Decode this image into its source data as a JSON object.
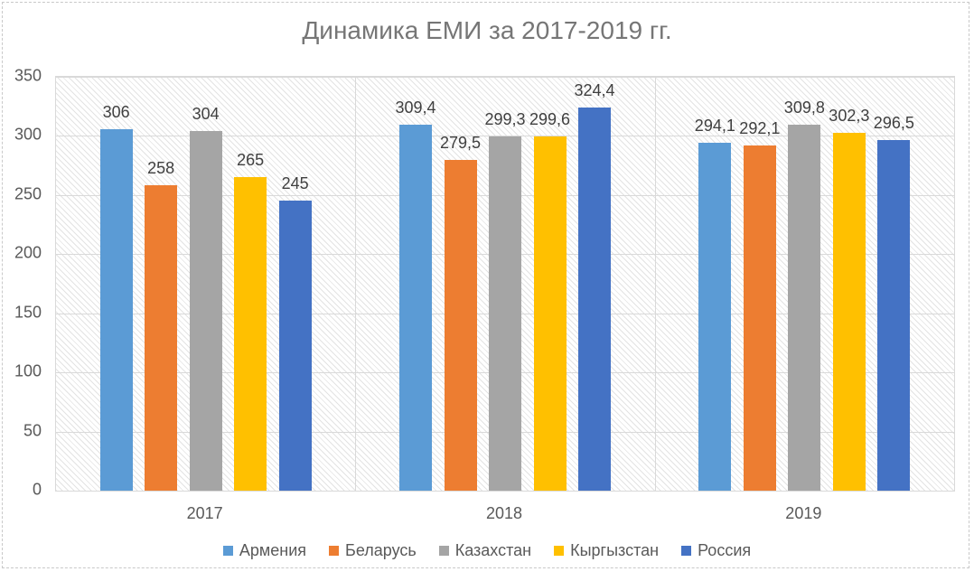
{
  "chart_data": {
    "type": "bar",
    "title": "Динамика ЕМИ за 2017-2019 гг.",
    "categories": [
      "2017",
      "2018",
      "2019"
    ],
    "series": [
      {
        "name": "Армения",
        "slug": "armenia",
        "color": "#5B9BD5",
        "values": [
          306,
          309.4,
          294.1
        ],
        "labels": [
          "306",
          "309,4",
          "294,1"
        ]
      },
      {
        "name": "Беларусь",
        "slug": "belarus",
        "color": "#ED7D31",
        "values": [
          258,
          279.5,
          292.1
        ],
        "labels": [
          "258",
          "279,5",
          "292,1"
        ]
      },
      {
        "name": "Казахстан",
        "slug": "kazakhstan",
        "color": "#A5A5A5",
        "values": [
          304,
          299.3,
          309.8
        ],
        "labels": [
          "304",
          "299,3",
          "309,8"
        ]
      },
      {
        "name": "Кыргызстан",
        "slug": "kyrgyzstan",
        "color": "#FFC000",
        "values": [
          265,
          299.6,
          302.3
        ],
        "labels": [
          "265",
          "299,6",
          "302,3"
        ]
      },
      {
        "name": "Россия",
        "slug": "russia",
        "color": "#4472C4",
        "values": [
          245,
          324.4,
          296.5
        ],
        "labels": [
          "245",
          "324,4",
          "296,5"
        ]
      }
    ],
    "y_axis": {
      "min": 0,
      "max": 350,
      "step": 50,
      "ticks": [
        "0",
        "50",
        "100",
        "150",
        "200",
        "250",
        "300",
        "350"
      ]
    },
    "x_axis_label": "",
    "ylabel": "",
    "ylim": [
      0,
      350
    ],
    "grid": true,
    "plot_background": "light-diagonal-hatch",
    "legend_position": "bottom"
  }
}
